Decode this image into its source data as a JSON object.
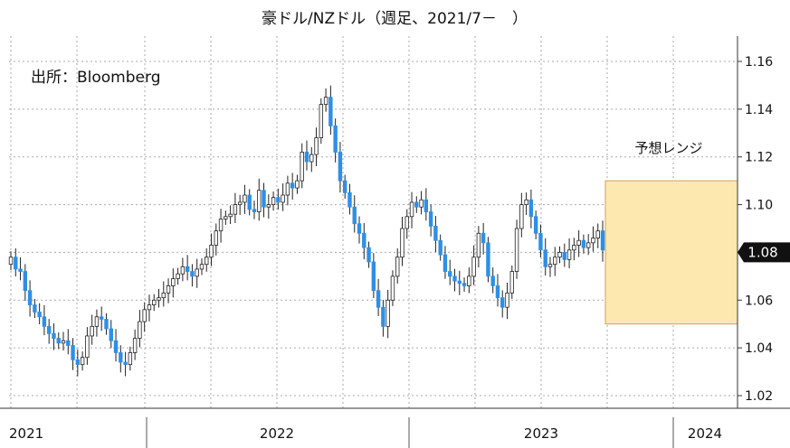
{
  "chart_data": {
    "type": "candlestick",
    "title": "豪ドル/NZドル（週足、2021/7－　）",
    "source_note": "出所：Bloomberg",
    "range_label": "予想レンジ",
    "last_value_label": "1.08",
    "ylim": [
      1.02,
      1.165
    ],
    "y_ticks": [
      1.02,
      1.04,
      1.06,
      1.08,
      1.1,
      1.12,
      1.14,
      1.16
    ],
    "y_tick_labels": [
      "1.02",
      "1.04",
      "1.06",
      "1.08",
      "1.10",
      "1.12",
      "1.14",
      "1.16"
    ],
    "x_labels": [
      "2021",
      "2022",
      "2023",
      "2024"
    ],
    "forecast_range": {
      "low": 1.05,
      "high": 1.11,
      "start": "2023-11",
      "end": "2024-03"
    },
    "grid": true,
    "colors": {
      "up": "#ffffff",
      "down": "#2e8fe6",
      "range_fill": "#fde8b0",
      "range_border": "#c9a655",
      "grid": "#aaaaaa"
    },
    "closes": [
      1.078,
      1.073,
      1.072,
      1.064,
      1.058,
      1.055,
      1.053,
      1.049,
      1.046,
      1.044,
      1.042,
      1.043,
      1.041,
      1.035,
      1.033,
      1.036,
      1.045,
      1.049,
      1.053,
      1.052,
      1.048,
      1.043,
      1.038,
      1.034,
      1.033,
      1.038,
      1.044,
      1.051,
      1.056,
      1.058,
      1.06,
      1.061,
      1.063,
      1.066,
      1.069,
      1.071,
      1.074,
      1.072,
      1.07,
      1.073,
      1.075,
      1.078,
      1.083,
      1.089,
      1.094,
      1.095,
      1.096,
      1.1,
      1.101,
      1.104,
      1.098,
      1.097,
      1.106,
      1.099,
      1.1,
      1.103,
      1.101,
      1.104,
      1.109,
      1.107,
      1.11,
      1.122,
      1.118,
      1.121,
      1.128,
      1.142,
      1.145,
      1.133,
      1.122,
      1.11,
      1.105,
      1.099,
      1.092,
      1.088,
      1.082,
      1.076,
      1.064,
      1.057,
      1.049,
      1.06,
      1.07,
      1.078,
      1.09,
      1.095,
      1.101,
      1.099,
      1.102,
      1.097,
      1.091,
      1.085,
      1.079,
      1.072,
      1.07,
      1.068,
      1.067,
      1.066,
      1.07,
      1.078,
      1.088,
      1.084,
      1.07,
      1.066,
      1.061,
      1.057,
      1.063,
      1.072,
      1.09,
      1.1,
      1.102,
      1.095,
      1.088,
      1.081,
      1.074,
      1.075,
      1.078,
      1.08,
      1.077,
      1.081,
      1.083,
      1.085,
      1.082,
      1.084,
      1.086,
      1.089,
      1.081
    ]
  }
}
